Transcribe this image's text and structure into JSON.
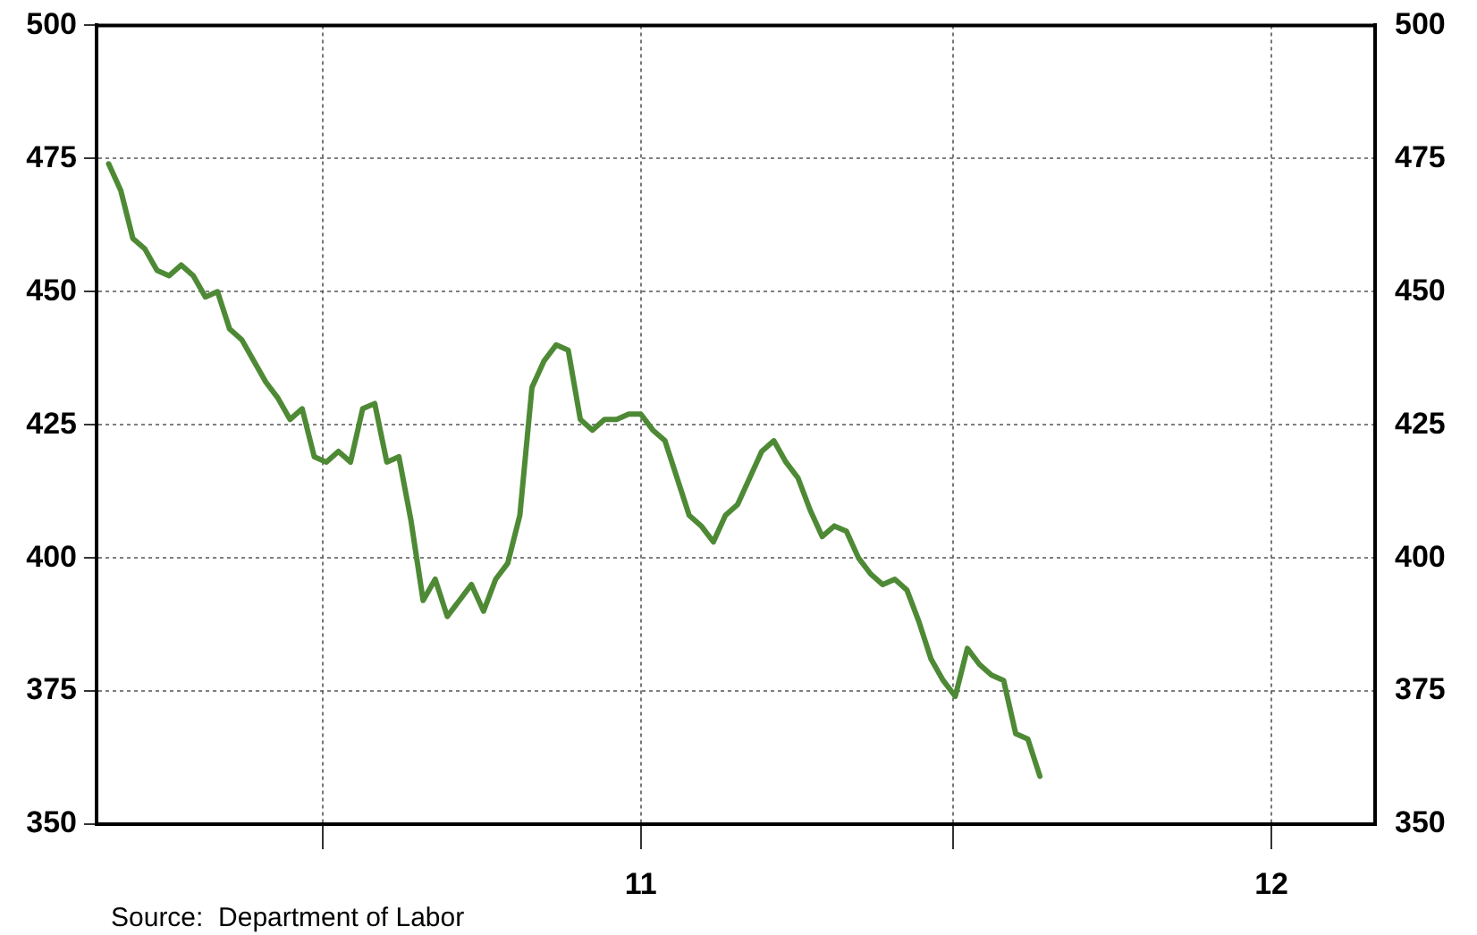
{
  "chart_data": {
    "type": "line",
    "x": [
      "2010-02-27",
      "2010-03-06",
      "2010-03-13",
      "2010-03-20",
      "2010-03-27",
      "2010-04-03",
      "2010-04-10",
      "2010-04-17",
      "2010-04-24",
      "2010-05-01",
      "2010-05-08",
      "2010-05-15",
      "2010-05-22",
      "2010-05-29",
      "2010-06-05",
      "2010-06-12",
      "2010-06-19",
      "2010-06-26",
      "2010-07-03",
      "2010-07-10",
      "2010-07-17",
      "2010-07-24",
      "2010-07-31",
      "2010-08-07",
      "2010-08-14",
      "2010-08-21",
      "2010-08-28",
      "2010-09-04",
      "2010-09-11",
      "2010-09-18",
      "2010-09-25",
      "2010-10-02",
      "2010-10-09",
      "2010-10-16",
      "2010-10-23",
      "2010-10-30",
      "2010-11-06",
      "2010-11-13",
      "2010-11-20",
      "2010-11-27",
      "2010-12-04",
      "2010-12-11",
      "2010-12-18",
      "2010-12-25",
      "2011-01-01",
      "2011-01-08",
      "2011-01-15",
      "2011-01-22",
      "2011-01-29",
      "2011-02-05",
      "2011-02-12",
      "2011-02-19",
      "2011-02-26",
      "2011-03-05",
      "2011-03-12",
      "2011-03-19",
      "2011-03-26",
      "2011-04-02",
      "2011-04-09",
      "2011-04-16",
      "2011-04-23",
      "2011-04-30",
      "2011-05-07",
      "2011-05-14",
      "2011-05-21",
      "2011-05-28",
      "2011-06-04",
      "2011-06-11",
      "2011-06-18",
      "2011-06-25",
      "2011-07-02",
      "2011-07-09",
      "2011-07-16",
      "2011-07-23",
      "2011-07-30",
      "2011-08-06",
      "2011-08-13",
      "2011-08-20"
    ],
    "series": [
      {
        "color": "#4e8a35",
        "values": [
          474,
          469,
          460,
          458,
          454,
          453,
          455,
          453,
          449,
          450,
          443,
          441,
          437,
          433,
          430,
          426,
          428,
          419,
          418,
          420,
          418,
          428,
          429,
          418,
          419,
          407,
          392,
          396,
          389,
          392,
          395,
          390,
          396,
          399,
          408,
          432,
          437,
          440,
          439,
          426,
          424,
          426,
          426,
          427,
          427,
          424,
          422,
          415,
          408,
          406,
          403,
          408,
          410,
          415,
          420,
          422,
          418,
          415,
          409,
          404,
          406,
          405,
          400,
          397,
          395,
          396,
          394,
          388,
          381,
          377,
          374,
          383,
          380,
          378,
          377,
          367,
          366,
          359
        ]
      }
    ],
    "xlim": [
      "2010-02-20",
      "2012-03-01"
    ],
    "xticks": [
      {
        "value": "2010-07",
        "label": null
      },
      {
        "value": "2011-01",
        "label": "11"
      },
      {
        "value": "2011-07",
        "label": null
      },
      {
        "value": "2012-01",
        "label": "12"
      }
    ],
    "ylim": [
      350,
      500
    ],
    "yticks": [
      350,
      375,
      400,
      425,
      450,
      475,
      500
    ],
    "y2lim": [
      350,
      500
    ],
    "y2ticks": [
      350,
      375,
      400,
      425,
      450,
      475,
      500
    ],
    "grid": true,
    "legend": false,
    "marker": "none",
    "line_style": "solid",
    "annotations": [
      "Source:  Department of Labor"
    ]
  }
}
